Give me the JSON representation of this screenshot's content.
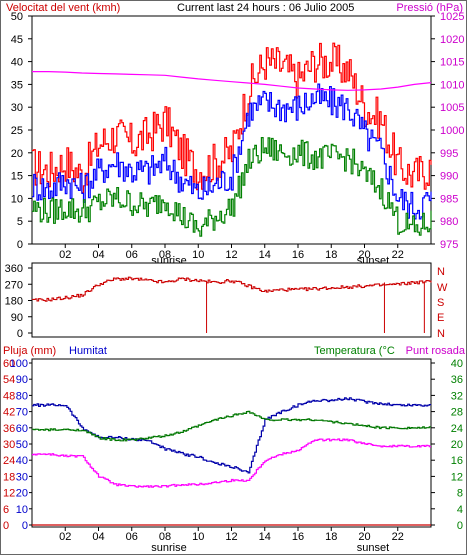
{
  "header": {
    "title": "Current last 24 hours : 06 Julio 2005"
  },
  "colors": {
    "wind_speed": "#ff0000",
    "wind_avg": "#0000ff",
    "wind_low": "#008000",
    "pressure": "#ff00ff",
    "direction": "#cc0000",
    "humidity": "#0000aa",
    "temperature": "#007700",
    "dew_point": "#ff00ff",
    "rain": "#cc0000",
    "axis_label_left": "#cc0000",
    "axis_label_humidity": "#0000cc",
    "axis_label_temp": "#008000"
  },
  "chart_data": [
    {
      "type": "line",
      "labels": {
        "left": "Velocitat del vent (kmh)",
        "right": "Pressió (hPa)"
      },
      "ylim": [
        0,
        50
      ],
      "y2lim": [
        975,
        1025
      ],
      "yticks": [
        0,
        5,
        10,
        15,
        20,
        25,
        30,
        35,
        40,
        45,
        50
      ],
      "y2ticks": [
        975,
        980,
        985,
        990,
        995,
        1000,
        1005,
        1010,
        1015,
        1020,
        1025
      ],
      "xticks": [
        "02",
        "04",
        "06",
        "08",
        "10",
        "12",
        "14",
        "16",
        "18",
        "20",
        "22"
      ],
      "sunrise": "sunrise",
      "sunset": "sunset",
      "x": [
        0,
        1,
        2,
        3,
        4,
        5,
        6,
        7,
        8,
        9,
        10,
        11,
        12,
        13,
        14,
        15,
        16,
        17,
        18,
        19,
        20,
        21,
        22,
        23,
        24
      ],
      "series": [
        {
          "color_key": "wind_speed",
          "values": [
            17,
            16,
            18,
            15,
            22,
            24,
            22,
            24,
            27,
            20,
            16,
            18,
            20,
            34,
            40,
            39,
            36,
            40,
            40,
            38,
            30,
            27,
            17,
            15,
            17
          ]
        },
        {
          "color_key": "wind_avg",
          "values": [
            13,
            12,
            14,
            12,
            16,
            18,
            16,
            16,
            18,
            14,
            11,
            13,
            15,
            29,
            31,
            30,
            30,
            32,
            31,
            30,
            24,
            20,
            10,
            8,
            10
          ]
        },
        {
          "color_key": "wind_low",
          "values": [
            8,
            7,
            8,
            7,
            9,
            10,
            9,
            8,
            10,
            6,
            3,
            6,
            8,
            18,
            21,
            20,
            20,
            19,
            19,
            19,
            15,
            12,
            5,
            3,
            5
          ]
        },
        {
          "color_key": "pressure",
          "axis": "right",
          "values": [
            1012.8,
            1012.8,
            1012.7,
            1012.5,
            1012.4,
            1012.3,
            1012.2,
            1012.1,
            1012.0,
            1011.6,
            1011.2,
            1010.9,
            1010.6,
            1010.3,
            1010.0,
            1009.6,
            1009.2,
            1009.0,
            1008.8,
            1008.7,
            1008.8,
            1009.0,
            1009.4,
            1010.0,
            1010.4
          ]
        }
      ]
    },
    {
      "type": "line",
      "ylim": [
        0,
        360
      ],
      "yticks": [
        0,
        90,
        180,
        270,
        360
      ],
      "compass": [
        "N",
        "W",
        "S",
        "E",
        "N"
      ],
      "compass_dash": "-",
      "x": [
        0,
        1,
        2,
        3,
        4,
        5,
        6,
        7,
        8,
        9,
        10,
        11,
        12,
        13,
        14,
        15,
        16,
        17,
        18,
        19,
        20,
        21,
        22,
        23,
        24
      ],
      "series": [
        {
          "color_key": "direction",
          "values": [
            180,
            185,
            195,
            210,
            270,
            300,
            300,
            290,
            280,
            300,
            290,
            280,
            290,
            260,
            230,
            240,
            240,
            245,
            250,
            255,
            260,
            265,
            270,
            280,
            285
          ]
        }
      ]
    },
    {
      "type": "line",
      "labels": {
        "rain": "Pluja (mm)",
        "humidity": "Humitat",
        "temp": "Temperatura (°C",
        "dew": "Punt rosada"
      },
      "rain_ticks": [
        0,
        6,
        12,
        18,
        24,
        30,
        36,
        42,
        48,
        54,
        60
      ],
      "humidity_ticks": [
        0,
        10,
        20,
        30,
        40,
        50,
        60,
        70,
        80,
        90,
        100
      ],
      "temp_ticks": [
        0,
        4,
        8,
        12,
        16,
        20,
        24,
        28,
        32,
        36,
        40
      ],
      "ylim": [
        0,
        100
      ],
      "y2lim": [
        0,
        40
      ],
      "xticks": [
        "02",
        "04",
        "06",
        "08",
        "10",
        "12",
        "14",
        "16",
        "18",
        "20",
        "22"
      ],
      "sunrise": "sunrise",
      "sunset": "sunset",
      "x": [
        0,
        1,
        2,
        3,
        4,
        5,
        6,
        7,
        8,
        9,
        10,
        11,
        12,
        13,
        14,
        15,
        16,
        17,
        18,
        19,
        20,
        21,
        22,
        23,
        24
      ],
      "series": [
        {
          "color_key": "humidity",
          "values": [
            74,
            74,
            74,
            60,
            54,
            54,
            53,
            52,
            47,
            44,
            42,
            38,
            36,
            32,
            65,
            70,
            74,
            77,
            77,
            78,
            76,
            75,
            74,
            74,
            74
          ]
        },
        {
          "color_key": "temperature",
          "axis": "right",
          "values": [
            23.5,
            23.5,
            23.5,
            23.5,
            21.5,
            21.0,
            21.0,
            21.5,
            22.0,
            23.0,
            24.5,
            26.0,
            27.0,
            28.0,
            26.0,
            26.0,
            26.0,
            26.0,
            25.5,
            25.0,
            24.5,
            24.0,
            24.0,
            24.0,
            24.0
          ]
        },
        {
          "color_key": "dew_point",
          "axis": "right",
          "values": [
            17.5,
            17.5,
            17.0,
            17.0,
            12.0,
            10.0,
            9.5,
            9.5,
            9.5,
            10.0,
            10.0,
            10.5,
            11.0,
            11.0,
            16.0,
            17.5,
            18.5,
            21.0,
            21.0,
            21.0,
            20.0,
            19.5,
            19.5,
            19.5,
            19.5
          ]
        },
        {
          "color_key": "rain",
          "values": [
            0,
            0,
            0,
            0,
            0,
            0,
            0,
            0,
            0,
            0,
            0,
            0,
            0,
            0,
            0,
            0,
            0,
            0,
            0,
            0,
            0,
            0,
            0,
            0,
            0
          ]
        }
      ]
    }
  ]
}
